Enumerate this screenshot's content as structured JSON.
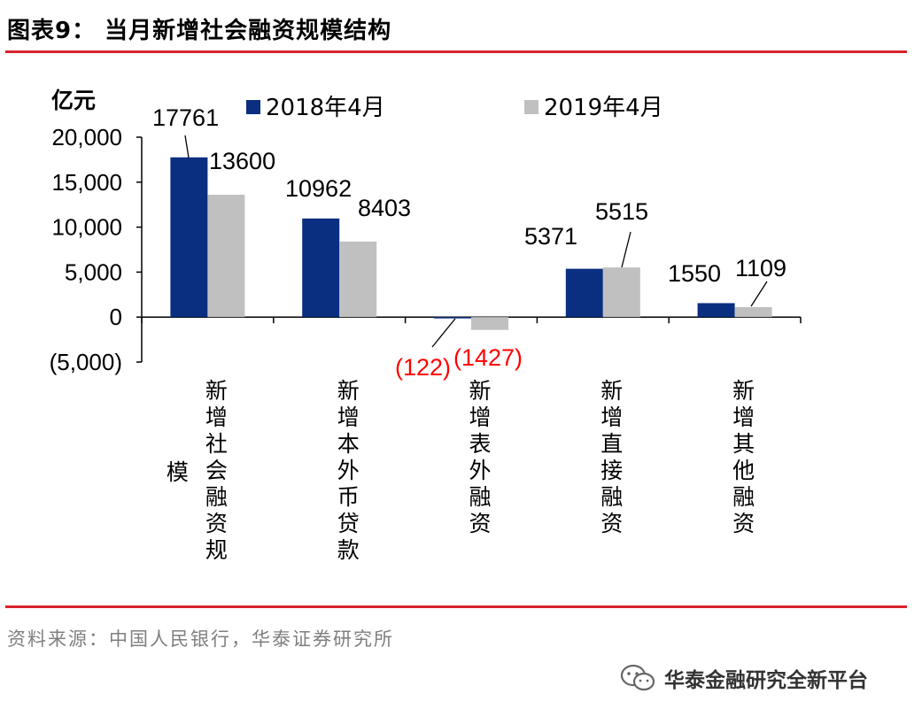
{
  "header": {
    "title": "图表9： 当月新增社会融资规模结构"
  },
  "footer": {
    "source": "资料来源：中国人民银行，华泰证券研究所",
    "watermark": "华泰金融研究全新平台",
    "watermark_icon": "wechat-icon"
  },
  "colors": {
    "accent_red": "#d9232d",
    "series_2018": "#0a2f80",
    "series_2019": "#c0c0c0",
    "negative_label": "#ff0000"
  },
  "chart_data": {
    "type": "bar",
    "title": "",
    "ylabel": "亿元",
    "xlabel": "",
    "ylim": [
      -5000,
      20000
    ],
    "yticks": [
      -5000,
      0,
      5000,
      10000,
      15000,
      20000
    ],
    "ytick_labels": [
      "(5,000)",
      "0",
      "5,000",
      "10,000",
      "15,000",
      "20,000"
    ],
    "categories": [
      "新增社会融资规模",
      "新增本外币贷款",
      "新增表外融资",
      "新增直接融资",
      "新增其他融资"
    ],
    "legend_position": "top",
    "grid": false,
    "series": [
      {
        "name": "2018年4月",
        "color": "#0a2f80",
        "values": [
          17761,
          10962,
          -122,
          5371,
          1550
        ],
        "labels": [
          "17761",
          "10962",
          "(122)",
          "5371",
          "1550"
        ]
      },
      {
        "name": "2019年4月",
        "color": "#c0c0c0",
        "values": [
          13600,
          8403,
          -1427,
          5515,
          1109
        ],
        "labels": [
          "13600",
          "8403",
          "(1427)",
          "5515",
          "1109"
        ]
      }
    ]
  }
}
